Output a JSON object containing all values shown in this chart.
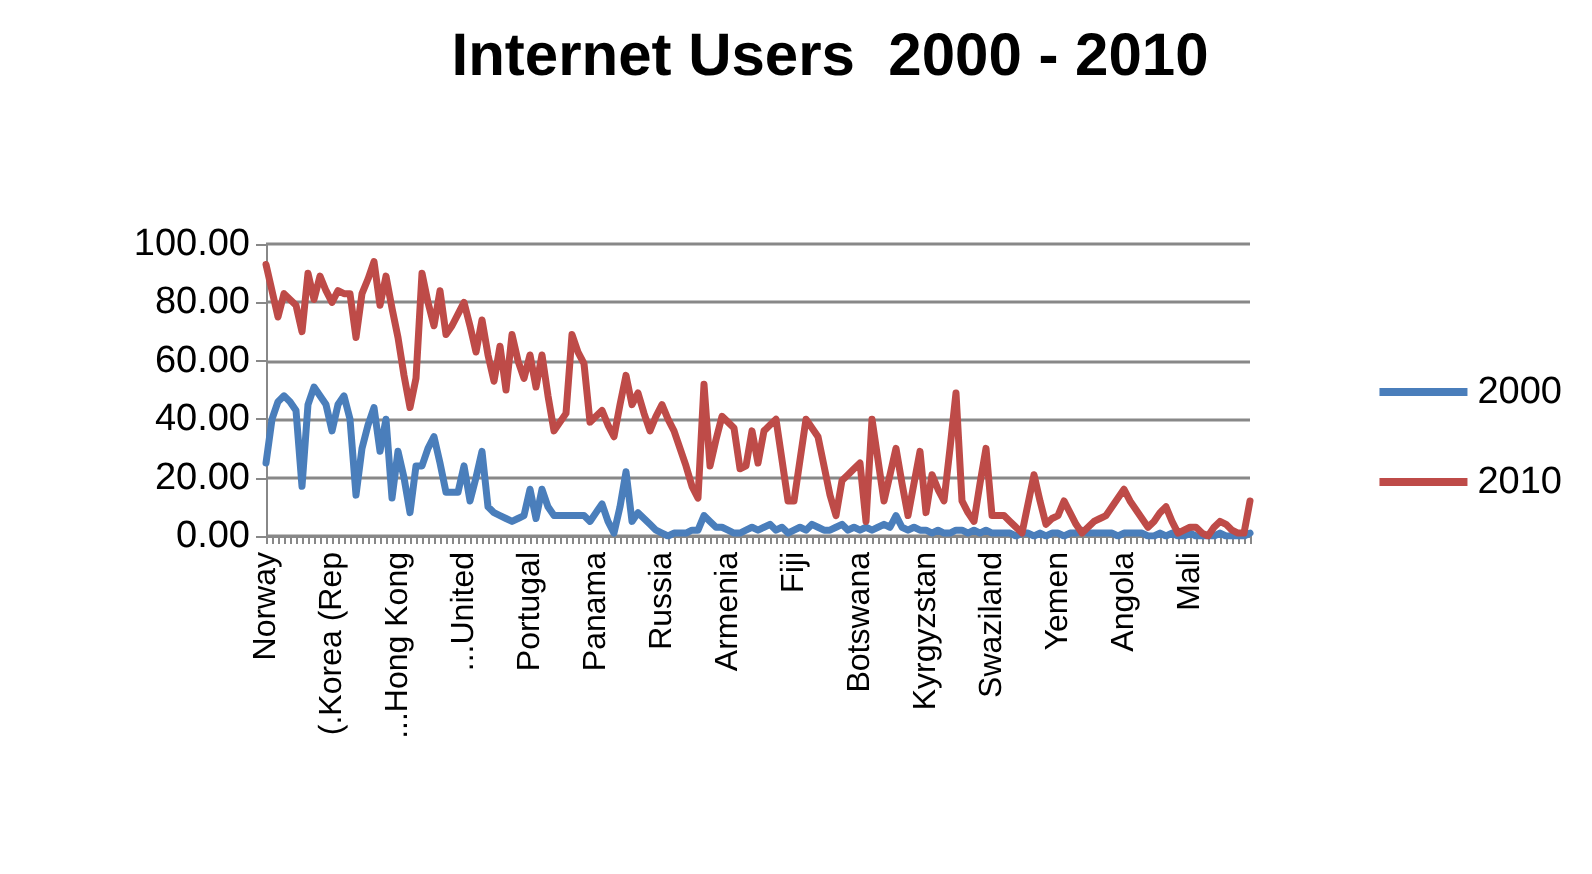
{
  "chart_data": {
    "type": "line",
    "title": "Internet Users  2000 - 2010",
    "categories": [
      "Norway",
      null,
      null,
      null,
      null,
      null,
      null,
      null,
      null,
      null,
      null,
      "(.Korea (Rep",
      null,
      null,
      null,
      null,
      null,
      null,
      null,
      null,
      null,
      null,
      "...Hong Kong",
      null,
      null,
      null,
      null,
      null,
      null,
      null,
      null,
      null,
      null,
      "...United",
      null,
      null,
      null,
      null,
      null,
      null,
      null,
      null,
      null,
      null,
      "Portugal",
      null,
      null,
      null,
      null,
      null,
      null,
      null,
      null,
      null,
      null,
      "Panama",
      null,
      null,
      null,
      null,
      null,
      null,
      null,
      null,
      null,
      null,
      "Russia",
      null,
      null,
      null,
      null,
      null,
      null,
      null,
      null,
      null,
      null,
      "Armenia",
      null,
      null,
      null,
      null,
      null,
      null,
      null,
      null,
      null,
      null,
      "Fiji",
      null,
      null,
      null,
      null,
      null,
      null,
      null,
      null,
      null,
      null,
      "Botswana",
      null,
      null,
      null,
      null,
      null,
      null,
      null,
      null,
      null,
      null,
      "Kyrgyzstan",
      null,
      null,
      null,
      null,
      null,
      null,
      null,
      null,
      null,
      null,
      "Swaziland",
      null,
      null,
      null,
      null,
      null,
      null,
      null,
      null,
      null,
      null,
      "Yemen",
      null,
      null,
      null,
      null,
      null,
      null,
      null,
      null,
      null,
      null,
      "Angola",
      null,
      null,
      null,
      null,
      null,
      null,
      null,
      null,
      null,
      null,
      "Mali",
      null,
      null,
      null,
      null,
      null,
      null,
      null,
      null,
      null,
      null
    ],
    "series": [
      {
        "name": "2000",
        "color": "#4a7ebb",
        "values": [
          25,
          40,
          46,
          48,
          46,
          43,
          17,
          45,
          51,
          48,
          45,
          36,
          45,
          48,
          40,
          14,
          30,
          38,
          44,
          29,
          40,
          13,
          29,
          20,
          8,
          24,
          24,
          30,
          34,
          25,
          15,
          15,
          15,
          24,
          12,
          20,
          29,
          10,
          8,
          7,
          6,
          5,
          6,
          7,
          16,
          6,
          16,
          10,
          7,
          7,
          7,
          7,
          7,
          7,
          5,
          8,
          11,
          5,
          1,
          10,
          22,
          5,
          8,
          6,
          4,
          2,
          1,
          0,
          1,
          1,
          1,
          2,
          2,
          7,
          5,
          3,
          3,
          2,
          1,
          1,
          2,
          3,
          2,
          3,
          4,
          2,
          3,
          1,
          2,
          3,
          2,
          4,
          3,
          2,
          2,
          3,
          4,
          2,
          3,
          2,
          3,
          2,
          3,
          4,
          3,
          7,
          3,
          2,
          3,
          2,
          2,
          1,
          2,
          1,
          1,
          2,
          2,
          1,
          2,
          1,
          2,
          1,
          1,
          1,
          1,
          0,
          1,
          1,
          0,
          1,
          0,
          1,
          1,
          0,
          1,
          1,
          2,
          1,
          1,
          1,
          1,
          1,
          0,
          1,
          1,
          1,
          1,
          0,
          0,
          1,
          0,
          1,
          0,
          0,
          1,
          0,
          0,
          0,
          0,
          1,
          0,
          0,
          0,
          0,
          1
        ]
      },
      {
        "name": "2010",
        "color": "#be4b48",
        "values": [
          93,
          84,
          75,
          83,
          81,
          79,
          70,
          90,
          81,
          89,
          84,
          80,
          84,
          83,
          83,
          68,
          83,
          88,
          94,
          79,
          89,
          78,
          68,
          55,
          44,
          54,
          90,
          80,
          72,
          84,
          69,
          72,
          76,
          80,
          72,
          63,
          74,
          62,
          53,
          65,
          50,
          69,
          60,
          54,
          62,
          51,
          62,
          48,
          36,
          39,
          42,
          69,
          63,
          59,
          39,
          41,
          43,
          38,
          34,
          45,
          55,
          45,
          49,
          42,
          36,
          41,
          45,
          40,
          36,
          30,
          24,
          17,
          13,
          52,
          24,
          33,
          41,
          39,
          37,
          23,
          24,
          36,
          25,
          36,
          38,
          40,
          26,
          12,
          12,
          26,
          40,
          37,
          34,
          24,
          14,
          7,
          19,
          21,
          23,
          25,
          5,
          40,
          26,
          12,
          21,
          30,
          18,
          7,
          18,
          29,
          8,
          21,
          16,
          12,
          30,
          49,
          12,
          8,
          5,
          18,
          30,
          7,
          7,
          7,
          5,
          3,
          1,
          11,
          21,
          12,
          4,
          6,
          7,
          12,
          8,
          4,
          1,
          3,
          5,
          6,
          7,
          10,
          13,
          16,
          12,
          9,
          6,
          3,
          5,
          8,
          10,
          5,
          1,
          2,
          3,
          3,
          1,
          0,
          3,
          5,
          4,
          2,
          1,
          1,
          12
        ]
      }
    ],
    "ylim": [
      0,
      100
    ],
    "yticks": [
      {
        "value": 0,
        "label": "0.00"
      },
      {
        "value": 20,
        "label": "20.00"
      },
      {
        "value": 40,
        "label": "40.00"
      },
      {
        "value": 60,
        "label": "60.00"
      },
      {
        "value": 80,
        "label": "80.00"
      },
      {
        "value": 100,
        "label": "100.00"
      }
    ],
    "grid": "y",
    "legend": "right",
    "marker": "none",
    "line_style": "solid"
  }
}
